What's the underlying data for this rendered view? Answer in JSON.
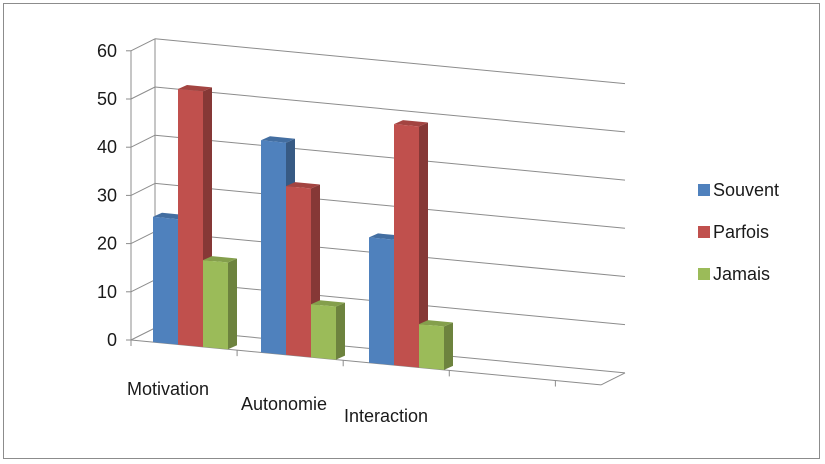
{
  "chart_data": {
    "type": "bar",
    "categories": [
      "Motivation",
      "Autonomie",
      "Interaction"
    ],
    "series": [
      {
        "name": "Souvent",
        "values": [
          26,
          44,
          26
        ],
        "color": "#4f81bd"
      },
      {
        "name": "Parfois",
        "values": [
          53,
          35,
          50
        ],
        "color": "#c0504d"
      },
      {
        "name": "Jamais",
        "values": [
          18,
          11,
          9
        ],
        "color": "#9bbb59"
      }
    ],
    "ylim": [
      0,
      60
    ],
    "yticks": [
      0,
      10,
      20,
      30,
      40,
      50,
      60
    ],
    "grid": true,
    "legend": "right"
  }
}
